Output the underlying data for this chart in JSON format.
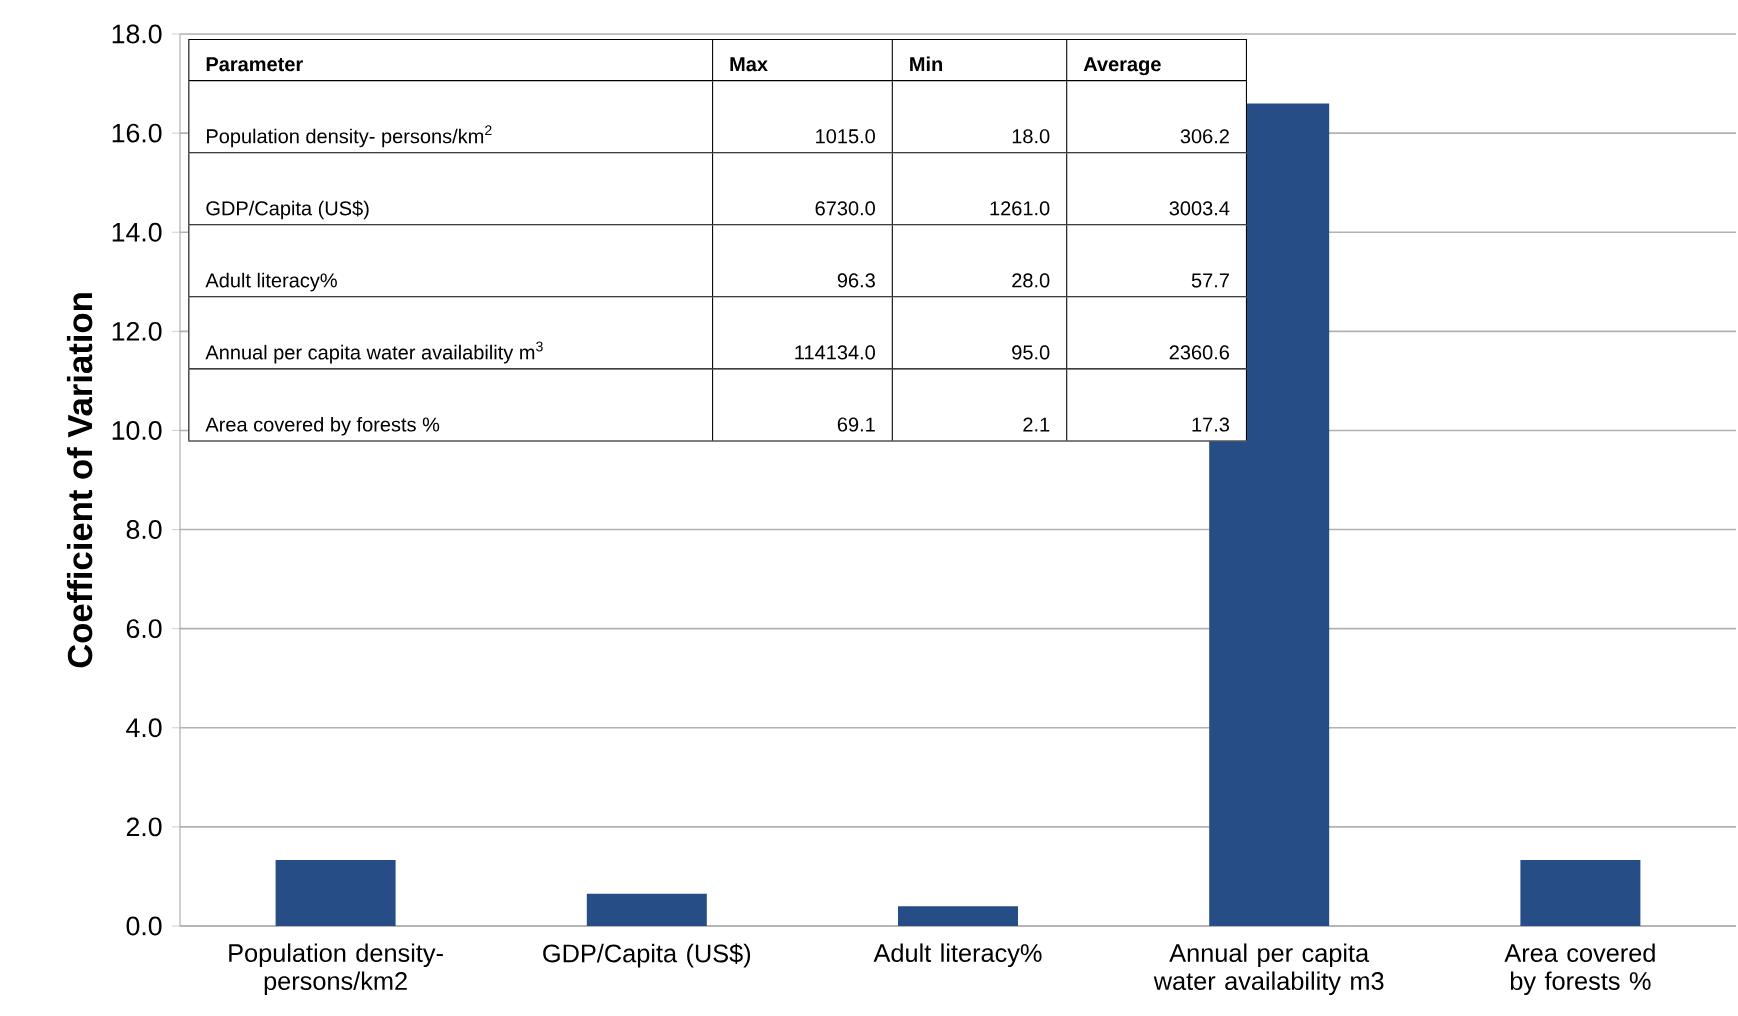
{
  "chart_data": {
    "type": "bar",
    "ylabel": "Coefficient of Variation",
    "categories": [
      "Population density- persons/km2",
      "GDP/Capita (US$)",
      "Adult literacy%",
      "Annual per capita water availability m3",
      "Area covered by forests %"
    ],
    "values": [
      1.33,
      0.65,
      0.4,
      16.6,
      1.33
    ],
    "color": "#264d86",
    "ylim": [
      0,
      18
    ],
    "yticks": [
      {
        "value": 0,
        "label": "0.0"
      },
      {
        "value": 2,
        "label": "2.0"
      },
      {
        "value": 4,
        "label": "4.0"
      },
      {
        "value": 6,
        "label": "6.0"
      },
      {
        "value": 8,
        "label": "8.0"
      },
      {
        "value": 10,
        "label": "10.0"
      },
      {
        "value": 12,
        "label": "12.0"
      },
      {
        "value": 14,
        "label": "14.0"
      },
      {
        "value": 16,
        "label": "16.0"
      },
      {
        "value": 18,
        "label": "18.0"
      }
    ],
    "grid": "y",
    "annotations": [
      "Parameter",
      "Max",
      "Min",
      "Average",
      "Population density- persons/km$^{2}$",
      "1015.0",
      "18.0",
      "306.2",
      "GDP/Capita (US$)",
      "6730.0",
      "1261.0",
      "3003.4",
      "Adult literacy%",
      "96.3",
      "28.0",
      "57.7",
      "Annual per capita water availability m$^{3}$",
      "114134.0",
      "95.0",
      "2360.6",
      "Area covered by forests %",
      "69.1",
      "2.1",
      "17.3"
    ]
  }
}
